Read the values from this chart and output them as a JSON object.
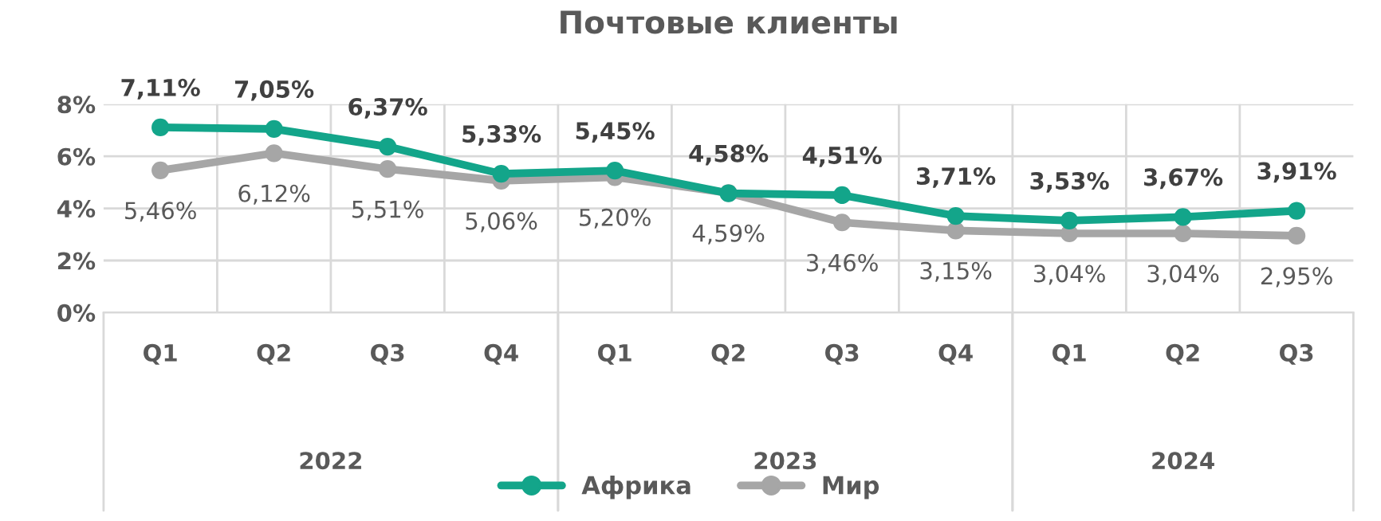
{
  "chart_data": {
    "type": "line",
    "title": "Почтовые клиенты",
    "categories": [
      "Q1",
      "Q2",
      "Q3",
      "Q4",
      "Q1",
      "Q2",
      "Q3",
      "Q4",
      "Q1",
      "Q2",
      "Q3"
    ],
    "series": [
      {
        "name": "Африка",
        "color": "#13a58a",
        "values": [
          7.11,
          7.05,
          6.37,
          5.33,
          5.45,
          4.58,
          4.51,
          3.71,
          3.53,
          3.67,
          3.91
        ],
        "value_labels": [
          "7,11%",
          "7,05%",
          "6,37%",
          "5,33%",
          "5,45%",
          "4,58%",
          "4,51%",
          "3,71%",
          "3,53%",
          "3,67%",
          "3,91%"
        ]
      },
      {
        "name": "Мир",
        "color": "#a6a6a6",
        "values": [
          5.46,
          6.12,
          5.51,
          5.06,
          5.2,
          4.59,
          3.46,
          3.15,
          3.04,
          3.04,
          2.95
        ],
        "value_labels": [
          "5,46%",
          "6,12%",
          "5,51%",
          "5,06%",
          "5,20%",
          "4,59%",
          "3,46%",
          "3,15%",
          "3,04%",
          "3,04%",
          "2,95%"
        ]
      }
    ],
    "annotations": [
      "2022",
      "2023",
      "2024"
    ],
    "ylim": [
      0,
      8
    ],
    "yticks": [
      {
        "value": 0,
        "label": "0%"
      },
      {
        "value": 2,
        "label": "2%"
      },
      {
        "value": 4,
        "label": "4%"
      },
      {
        "value": 6,
        "label": "6%"
      },
      {
        "value": 8,
        "label": "8%"
      }
    ],
    "grid": true,
    "legend": "bottom",
    "marker": "circle",
    "line_style": "solid"
  }
}
